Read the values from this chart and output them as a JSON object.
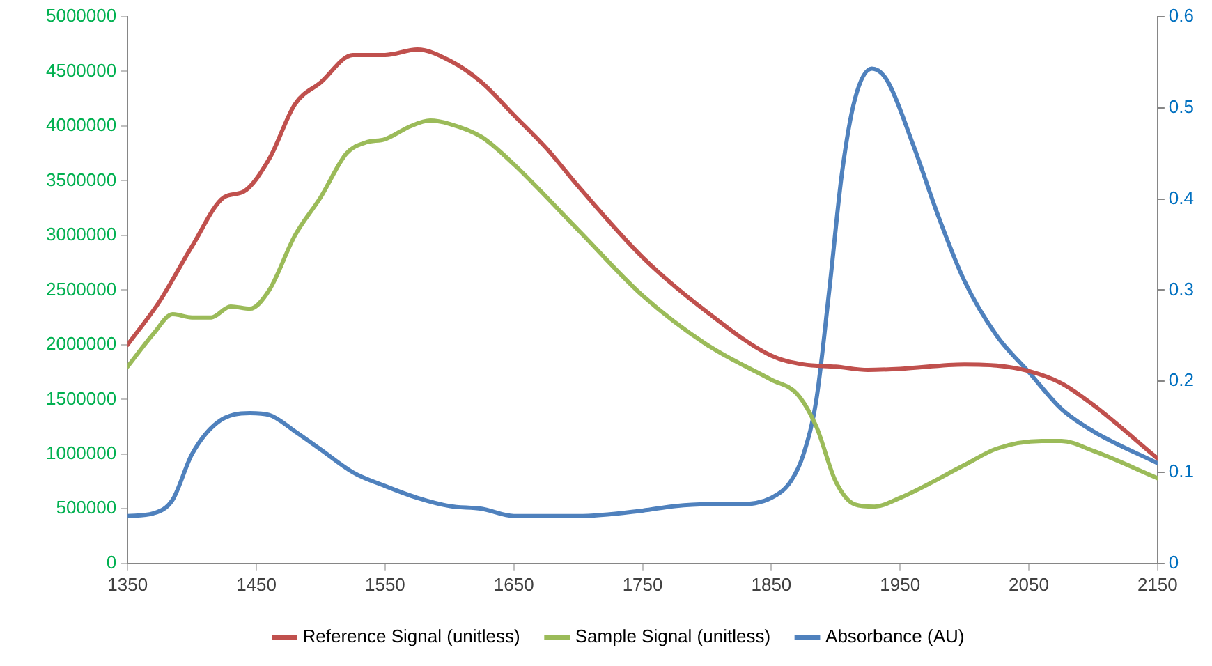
{
  "chart_data": {
    "type": "line",
    "xlim": [
      1350,
      2150
    ],
    "xticks": [
      1350,
      1450,
      1550,
      1650,
      1750,
      1850,
      1950,
      2050,
      2150
    ],
    "ylim": [
      0,
      5000000
    ],
    "yticks": [
      0,
      500000,
      1000000,
      1500000,
      2000000,
      2500000,
      3000000,
      3500000,
      4000000,
      4500000,
      5000000
    ],
    "y2lim": [
      0,
      0.6
    ],
    "y2ticks": [
      0,
      0.1,
      0.2,
      0.3,
      0.4,
      0.5,
      0.6
    ],
    "grid": false,
    "legend": "bottom",
    "marker": "none",
    "line_style": "solid",
    "series": [
      {
        "name": "Reference Signal (unitless)",
        "color": "#c0504d",
        "x": [
          1350,
          1375,
          1400,
          1425,
          1440,
          1460,
          1480,
          1500,
          1525,
          1550,
          1575,
          1600,
          1625,
          1650,
          1675,
          1700,
          1750,
          1800,
          1850,
          1875,
          1900,
          1925,
          1950,
          2000,
          2025,
          2050,
          2075,
          2100,
          2150
        ],
        "values": [
          2000000,
          2400000,
          2900000,
          3350000,
          3400000,
          3700000,
          4200000,
          4400000,
          4650000,
          4650000,
          4700000,
          4600000,
          4400000,
          4100000,
          3800000,
          3450000,
          2800000,
          2300000,
          1900000,
          1820000,
          1800000,
          1770000,
          1780000,
          1820000,
          1810000,
          1760000,
          1650000,
          1450000,
          960000
        ]
      },
      {
        "name": "Sample Signal (unitless)",
        "color": "#9bbb59",
        "x": [
          1350,
          1370,
          1385,
          1400,
          1415,
          1430,
          1445,
          1460,
          1480,
          1500,
          1520,
          1535,
          1550,
          1570,
          1585,
          1600,
          1625,
          1650,
          1700,
          1750,
          1800,
          1850,
          1870,
          1885,
          1900,
          1915,
          1930,
          1950,
          2000,
          2025,
          2060,
          2075,
          2100,
          2150
        ],
        "values": [
          1800000,
          2100000,
          2280000,
          2250000,
          2250000,
          2350000,
          2330000,
          2500000,
          3000000,
          3350000,
          3750000,
          3850000,
          3880000,
          4000000,
          4050000,
          4020000,
          3900000,
          3650000,
          3050000,
          2450000,
          2000000,
          1680000,
          1550000,
          1250000,
          750000,
          540000,
          520000,
          600000,
          900000,
          1050000,
          1120000,
          1120000,
          1030000,
          780000
        ]
      },
      {
        "name": "Absorbance (AU)",
        "color": "#4f81bd",
        "axis": "y2",
        "x": [
          1350,
          1370,
          1385,
          1400,
          1420,
          1445,
          1460,
          1480,
          1500,
          1525,
          1550,
          1575,
          1600,
          1625,
          1650,
          1700,
          1750,
          1775,
          1800,
          1825,
          1850,
          1865,
          1875,
          1885,
          1895,
          1905,
          1915,
          1928,
          1940,
          1960,
          1980,
          2000,
          2025,
          2050,
          2075,
          2100,
          2150
        ],
        "values": [
          0.052,
          0.055,
          0.07,
          0.12,
          0.155,
          0.165,
          0.163,
          0.145,
          0.125,
          0.1,
          0.085,
          0.072,
          0.063,
          0.06,
          0.052,
          0.052,
          0.058,
          0.063,
          0.065,
          0.065,
          0.072,
          0.09,
          0.12,
          0.18,
          0.3,
          0.43,
          0.51,
          0.543,
          0.53,
          0.46,
          0.38,
          0.31,
          0.25,
          0.21,
          0.17,
          0.145,
          0.11
        ]
      }
    ]
  }
}
